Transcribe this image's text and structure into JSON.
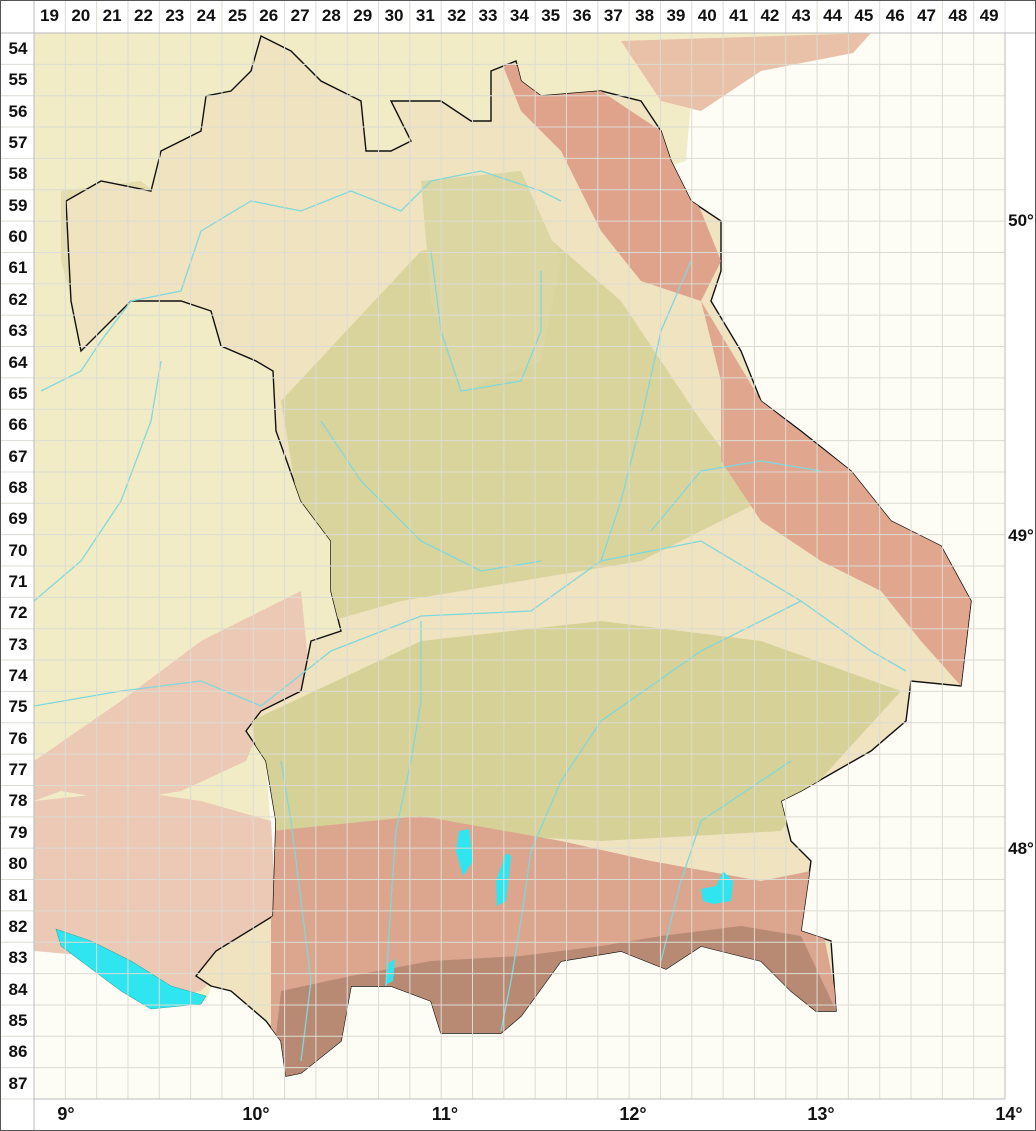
{
  "grid": {
    "columns": [
      "19",
      "20",
      "21",
      "22",
      "23",
      "24",
      "25",
      "26",
      "27",
      "28",
      "29",
      "30",
      "31",
      "32",
      "33",
      "34",
      "35",
      "36",
      "37",
      "38",
      "39",
      "40",
      "41",
      "42",
      "43",
      "44",
      "45",
      "46",
      "47",
      "48",
      "49"
    ],
    "rows": [
      "54",
      "55",
      "56",
      "57",
      "58",
      "59",
      "60",
      "61",
      "62",
      "63",
      "64",
      "65",
      "66",
      "67",
      "68",
      "69",
      "70",
      "71",
      "72",
      "73",
      "74",
      "75",
      "76",
      "77",
      "78",
      "79",
      "80",
      "81",
      "82",
      "83",
      "84",
      "85",
      "86",
      "87"
    ]
  },
  "longitude_labels": [
    "9°",
    "10°",
    "11°",
    "12°",
    "13°",
    "14°"
  ],
  "latitude_labels": [
    "50°",
    "49°",
    "48°"
  ],
  "colors": {
    "background": "#fdfdf6",
    "grid_line": "#e2e2dc",
    "lowland": "#efe6c4",
    "plain": "#d8d39a",
    "hills": "#e6c8ae",
    "mountains": "#d49a84",
    "water": "#2fe6f0",
    "river": "#7fd8dc",
    "border": "#111111"
  }
}
